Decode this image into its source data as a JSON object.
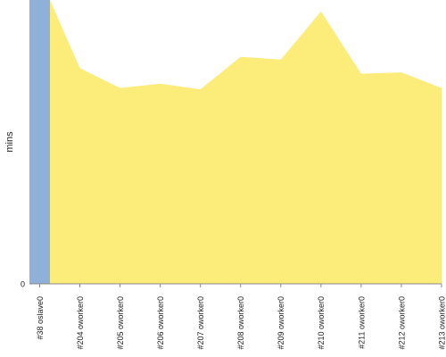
{
  "chart_data": {
    "type": "area",
    "xlabel": "",
    "ylabel": "mins",
    "ytick_labels": [
      "0"
    ],
    "ylim": [
      0,
      100
    ],
    "grid": false,
    "categories": [
      "#38 oslave0",
      "#204 oworker0",
      "#205 oworker0",
      "#206 oworker0",
      "#207 oworker0",
      "#208 oworker0",
      "#209 oworker0",
      "#210 oworker0",
      "#211 oworker0",
      "#212 oworker0",
      "#213 oworker0"
    ],
    "series": [
      {
        "color": "#8fb1d9",
        "values": [
          100,
          0,
          0,
          0,
          0,
          0,
          0,
          0,
          0,
          0,
          0
        ]
      },
      {
        "color": "#fcec7a",
        "values": [
          100,
          76,
          69,
          70.5,
          68.5,
          80,
          79,
          96,
          74,
          74.5,
          69
        ]
      }
    ]
  }
}
